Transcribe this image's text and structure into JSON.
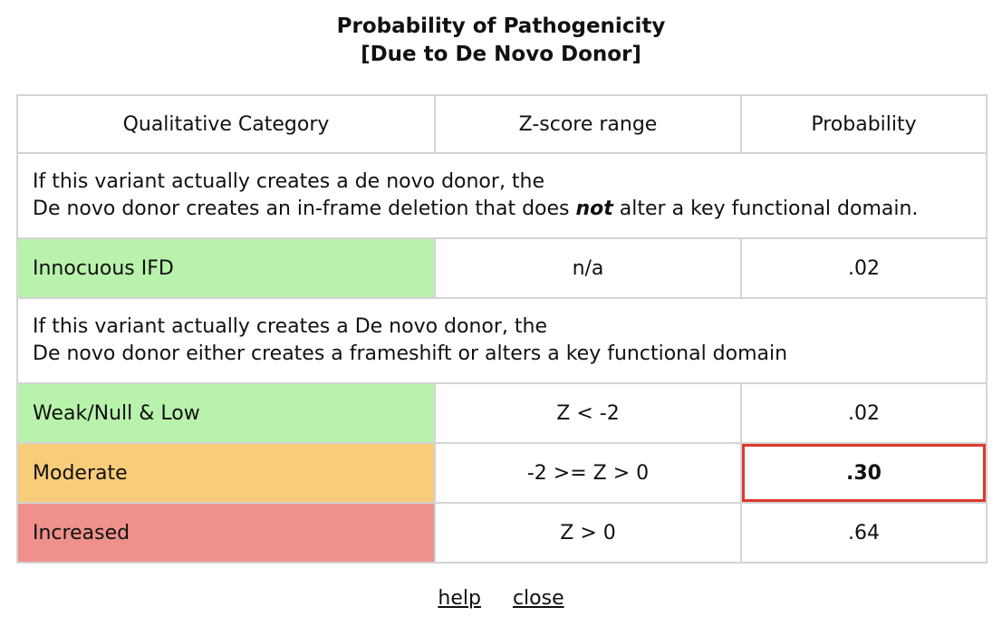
{
  "title": {
    "line1": "Probability of Pathogenicity",
    "line2": "[Due to De Novo Donor]"
  },
  "colors": {
    "green": "#b9f2ad",
    "orange": "#f8cc79",
    "red": "#ef908b",
    "highlight_border": "#dd3a2e",
    "grid": "#d4d4d4"
  },
  "table": {
    "headers": [
      "Qualitative Category",
      "Z-score range",
      "Probability"
    ],
    "section1": {
      "line1": "If this variant actually creates a de novo donor, the",
      "line2_before": "De novo donor creates an in-frame deletion that does ",
      "line2_emphasis": "not",
      "line2_after": " alter a key functional domain."
    },
    "row_innocuous": {
      "category": "Innocuous IFD",
      "range": "n/a",
      "probability": ".02"
    },
    "section2": {
      "line1": "If this variant actually creates a De novo donor, the",
      "line2": "De novo donor either creates a frameshift or alters a key functional domain"
    },
    "rows": [
      {
        "category": "Weak/Null & Low",
        "range": "Z < -2",
        "probability": ".02"
      },
      {
        "category": "Moderate",
        "range": "-2 >= Z > 0",
        "probability": ".30"
      },
      {
        "category": "Increased",
        "range": "Z > 0",
        "probability": ".64"
      }
    ]
  },
  "links": {
    "help": "help",
    "close": "close"
  }
}
